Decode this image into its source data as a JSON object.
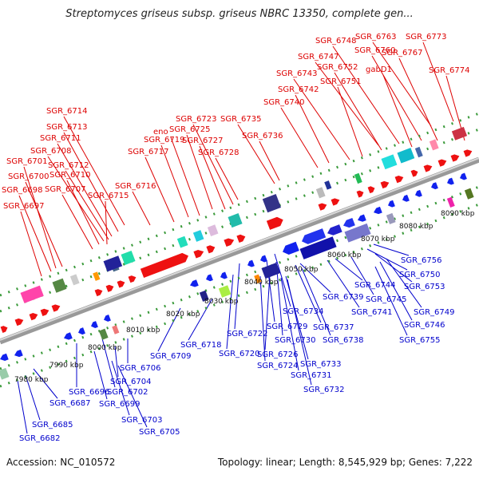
{
  "title": "Streptomyces griseus subsp. griseus NBRC 13350, complete gen...",
  "accession": "Accession: NC_010572",
  "topology": "Topology: linear; Length: 8,545,929 bp; Genes: 7,222",
  "colors": {
    "top_label": "#dd0000",
    "bottom_label": "#0000cc",
    "forward": "#ee1111",
    "reverse": "#1122ee",
    "backbone": "#999999"
  },
  "ticks": [
    {
      "label": "7980 kbp"
    },
    {
      "label": "7990 kbp"
    },
    {
      "label": "8000 kbp"
    },
    {
      "label": "8010 kbp"
    },
    {
      "label": "8020 kbp"
    },
    {
      "label": "8030 kbp"
    },
    {
      "label": "8040 kbp"
    },
    {
      "label": "8050 kbp"
    },
    {
      "label": "8060 kbp"
    },
    {
      "label": "8070 kbp"
    },
    {
      "label": "8080 kbp"
    },
    {
      "label": "8090 kbp"
    }
  ],
  "top_labels": [
    "SGR_6773",
    "SGR_6763",
    "SGR_6748",
    "SGR_6760",
    "SGR_6767",
    "SGR_6747",
    "SGR_6752",
    "SGR_6774",
    "gabD1",
    "SGR_6743",
    "SGR_6751",
    "SGR_6742",
    "SGR_6740",
    "SGR_6714",
    "SGR_6723",
    "SGR_6735",
    "SGR_6713",
    "SGR_6725",
    "eno",
    "SGR_6711",
    "SGR_6719",
    "SGR_6727",
    "SGR_6736",
    "SGR_6708",
    "SGR_6717",
    "SGR_6728",
    "SGR_6701",
    "SGR_6712",
    "SGR_6700",
    "SGR_6710",
    "SGR_6716",
    "SGR_6698",
    "SGR_6707",
    "SGR_6715",
    "SGR_6697"
  ],
  "bottom_labels": [
    "SGR_6756",
    "SGR_6750",
    "SGR_6753",
    "SGR_6744",
    "SGR_6739",
    "SGR_6745",
    "SGR_6749",
    "SGR_6741",
    "SGR_6746",
    "SGR_6734",
    "SGR_6737",
    "SGR_6755",
    "SGR_6729",
    "SGR_6722",
    "SGR_6730",
    "SGR_6738",
    "SGR_6718",
    "SGR_6709",
    "SGR_6720",
    "SGR_6726",
    "SGR_6733",
    "SGR_6724",
    "SGR_6731",
    "SGR_6706",
    "SGR_6732",
    "SGR_6704",
    "SGR_6696",
    "SGR_6702",
    "SGR_6687",
    "SGR_6699",
    "SGR_6703",
    "SGR_6685",
    "SGR_6705",
    "SGR_6682"
  ]
}
